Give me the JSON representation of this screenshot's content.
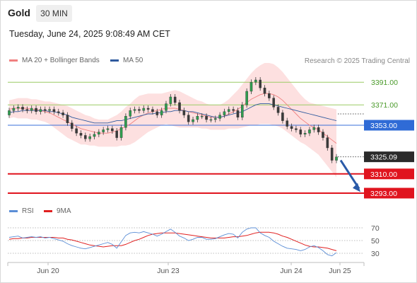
{
  "header": {
    "title": "Gold",
    "timeframe": "30 MIN",
    "datetime": "Tuesday, June 24, 2025 9:08:49 AM CET"
  },
  "legend": {
    "items": [
      {
        "label": "MA 20 + Bollinger Bands",
        "color": "#f08080"
      },
      {
        "label": "MA 50",
        "color": "#2f5a9e"
      }
    ],
    "credit": "Research © 2025 Trading Central"
  },
  "rsi_legend": {
    "items": [
      {
        "label": "RSI",
        "color": "#5b8ed6"
      },
      {
        "label": "9MA",
        "color": "#e02020"
      }
    ]
  },
  "chart_data": [
    {
      "type": "candlestick",
      "y_range": [
        3280,
        3415
      ],
      "levels": [
        {
          "value": "3391.00",
          "style": "green-text"
        },
        {
          "value": "3371.00",
          "style": "green-text"
        },
        {
          "value": "3353.00",
          "style": "blue-box"
        },
        {
          "value": "3325.09",
          "style": "dark-box"
        },
        {
          "value": "3310.00",
          "style": "red-box"
        },
        {
          "value": "3293.00",
          "style": "red-box"
        }
      ],
      "x_labels": [
        "Jun 20",
        "Jun 23",
        "Jun 24",
        "Jun 25"
      ],
      "close_series": [
        3366,
        3368,
        3369,
        3367,
        3366,
        3368,
        3365,
        3367,
        3366,
        3367,
        3365,
        3364,
        3362,
        3355,
        3350,
        3346,
        3344,
        3341,
        3343,
        3345,
        3347,
        3349,
        3350,
        3348,
        3342,
        3351,
        3361,
        3366,
        3367,
        3366,
        3368,
        3367,
        3365,
        3362,
        3366,
        3372,
        3378,
        3373,
        3366,
        3362,
        3356,
        3358,
        3361,
        3361,
        3358,
        3358,
        3359,
        3362,
        3365,
        3367,
        3366,
        3360,
        3371,
        3383,
        3391,
        3393,
        3386,
        3381,
        3377,
        3369,
        3364,
        3357,
        3352,
        3350,
        3349,
        3345,
        3346,
        3349,
        3351,
        3347,
        3342,
        3333,
        3322,
        3325
      ],
      "open_series": [
        3362,
        3366,
        3368,
        3369,
        3367,
        3366,
        3368,
        3365,
        3367,
        3366,
        3367,
        3365,
        3364,
        3362,
        3355,
        3350,
        3346,
        3344,
        3341,
        3343,
        3345,
        3347,
        3349,
        3350,
        3348,
        3342,
        3351,
        3361,
        3366,
        3367,
        3366,
        3368,
        3367,
        3365,
        3362,
        3366,
        3372,
        3378,
        3373,
        3366,
        3362,
        3356,
        3358,
        3361,
        3361,
        3358,
        3358,
        3359,
        3362,
        3365,
        3367,
        3366,
        3360,
        3371,
        3383,
        3391,
        3393,
        3386,
        3381,
        3377,
        3369,
        3364,
        3357,
        3352,
        3350,
        3349,
        3345,
        3346,
        3349,
        3351,
        3347,
        3342,
        3333,
        3322
      ],
      "ma50_series": [
        3364,
        3365,
        3365,
        3366,
        3366,
        3366,
        3366,
        3366,
        3366,
        3365,
        3365,
        3364,
        3363,
        3362,
        3360,
        3359,
        3358,
        3357,
        3356,
        3355,
        3355,
        3355,
        3355,
        3356,
        3357,
        3357,
        3358,
        3359,
        3360,
        3361,
        3362,
        3363,
        3363,
        3364,
        3364,
        3365,
        3365,
        3366,
        3366,
        3366,
        3365,
        3365,
        3364,
        3363,
        3362,
        3361,
        3360,
        3360,
        3361,
        3362,
        3363,
        3364,
        3365,
        3367,
        3369,
        3371,
        3372,
        3372,
        3372,
        3371,
        3370,
        3369,
        3368,
        3367,
        3366,
        3365,
        3364,
        3363,
        3362,
        3361,
        3360,
        3359,
        3358,
        3357
      ],
      "ma20_series": [
        3367,
        3368,
        3368,
        3368,
        3368,
        3367,
        3367,
        3366,
        3365,
        3364,
        3362,
        3360,
        3358,
        3356,
        3354,
        3352,
        3350,
        3349,
        3348,
        3347,
        3346,
        3346,
        3346,
        3347,
        3348,
        3350,
        3352,
        3354,
        3357,
        3360,
        3362,
        3364,
        3365,
        3366,
        3367,
        3368,
        3368,
        3368,
        3367,
        3366,
        3365,
        3364,
        3363,
        3362,
        3361,
        3360,
        3360,
        3360,
        3361,
        3363,
        3365,
        3367,
        3370,
        3373,
        3376,
        3378,
        3380,
        3381,
        3381,
        3380,
        3378,
        3375,
        3371,
        3367,
        3363,
        3359,
        3356,
        3353,
        3351,
        3349,
        3346,
        3343,
        3340,
        3337
      ],
      "bollinger_width": [
        8,
        8,
        9,
        9,
        9,
        9,
        9,
        9,
        9,
        10,
        11,
        12,
        13,
        14,
        14,
        14,
        14,
        13,
        13,
        12,
        12,
        12,
        12,
        13,
        14,
        15,
        17,
        18,
        19,
        19,
        18,
        17,
        16,
        15,
        14,
        14,
        15,
        16,
        16,
        15,
        14,
        13,
        12,
        12,
        11,
        11,
        11,
        11,
        12,
        13,
        15,
        17,
        19,
        21,
        23,
        25,
        26,
        27,
        27,
        27,
        26,
        25,
        24,
        23,
        22,
        21,
        20,
        20,
        21,
        22,
        24,
        26,
        28,
        30
      ]
    },
    {
      "type": "line",
      "y_ticks": [
        70,
        50,
        30
      ],
      "y_range": [
        20,
        80
      ],
      "series": [
        {
          "name": "RSI",
          "values": [
            55,
            56,
            57,
            54,
            55,
            56,
            55,
            56,
            54,
            55,
            53,
            51,
            49,
            45,
            42,
            40,
            38,
            37,
            39,
            41,
            43,
            45,
            47,
            44,
            38,
            48,
            58,
            62,
            63,
            62,
            64,
            62,
            60,
            57,
            60,
            64,
            68,
            63,
            57,
            54,
            50,
            52,
            55,
            55,
            52,
            52,
            53,
            56,
            59,
            61,
            60,
            54,
            63,
            68,
            70,
            70,
            62,
            58,
            55,
            49,
            45,
            41,
            38,
            37,
            36,
            34,
            36,
            40,
            42,
            39,
            34,
            28,
            26,
            31
          ]
        },
        {
          "name": "9MA",
          "values": [
            52,
            53,
            53,
            54,
            54,
            55,
            55,
            55,
            55,
            55,
            55,
            54,
            54,
            52,
            51,
            49,
            47,
            45,
            43,
            42,
            41,
            40,
            41,
            42,
            42,
            42,
            44,
            47,
            50,
            52,
            55,
            58,
            60,
            61,
            62,
            62,
            62,
            62,
            61,
            60,
            59,
            58,
            57,
            56,
            55,
            54,
            54,
            54,
            54,
            55,
            56,
            56,
            57,
            58,
            60,
            62,
            63,
            63,
            63,
            62,
            60,
            57,
            55,
            52,
            49,
            46,
            43,
            41,
            40,
            40,
            39,
            38,
            36,
            34
          ]
        }
      ]
    }
  ]
}
